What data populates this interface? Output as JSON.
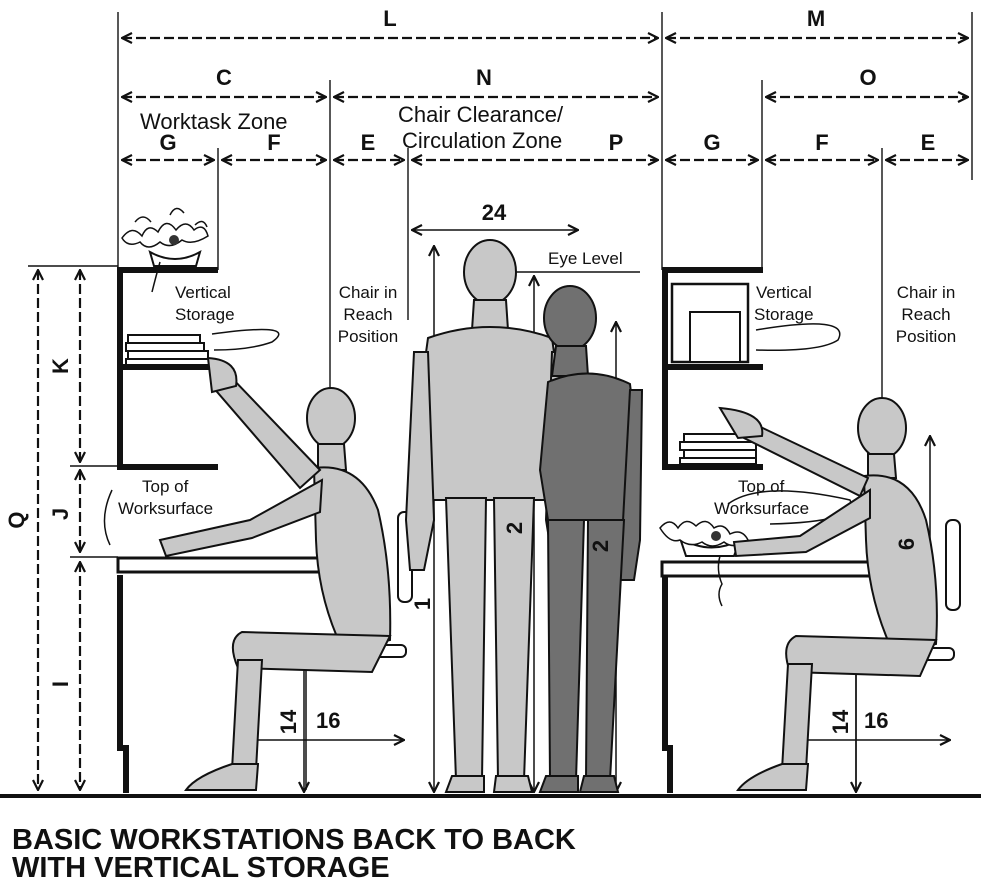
{
  "letters": {
    "L": "L",
    "M": "M",
    "C": "C",
    "N": "N",
    "O": "O",
    "G": "G",
    "F": "F",
    "E": "E",
    "P": "P",
    "K": "K",
    "J": "J",
    "I": "I",
    "Q": "Q"
  },
  "zones": {
    "worktask": "Worktask Zone",
    "clearance_line1": "Chair Clearance/",
    "clearance_line2": "Circulation Zone"
  },
  "labels": {
    "vertical_storage_1": "Vertical",
    "vertical_storage_2": "Storage",
    "chair_reach_1": "Chair in",
    "chair_reach_2": "Reach",
    "chair_reach_3": "Position",
    "top_worksurface_1": "Top of",
    "top_worksurface_2": "Worksurface",
    "eye_level": "Eye Level"
  },
  "numbers": {
    "n24": "24",
    "n14": "14",
    "n16": "16",
    "n1": "1",
    "n2": "2",
    "n6": "6"
  },
  "caption": {
    "line1": "BASIC WORKSTATIONS BACK TO BACK",
    "line2": "WITH VERTICAL STORAGE"
  }
}
